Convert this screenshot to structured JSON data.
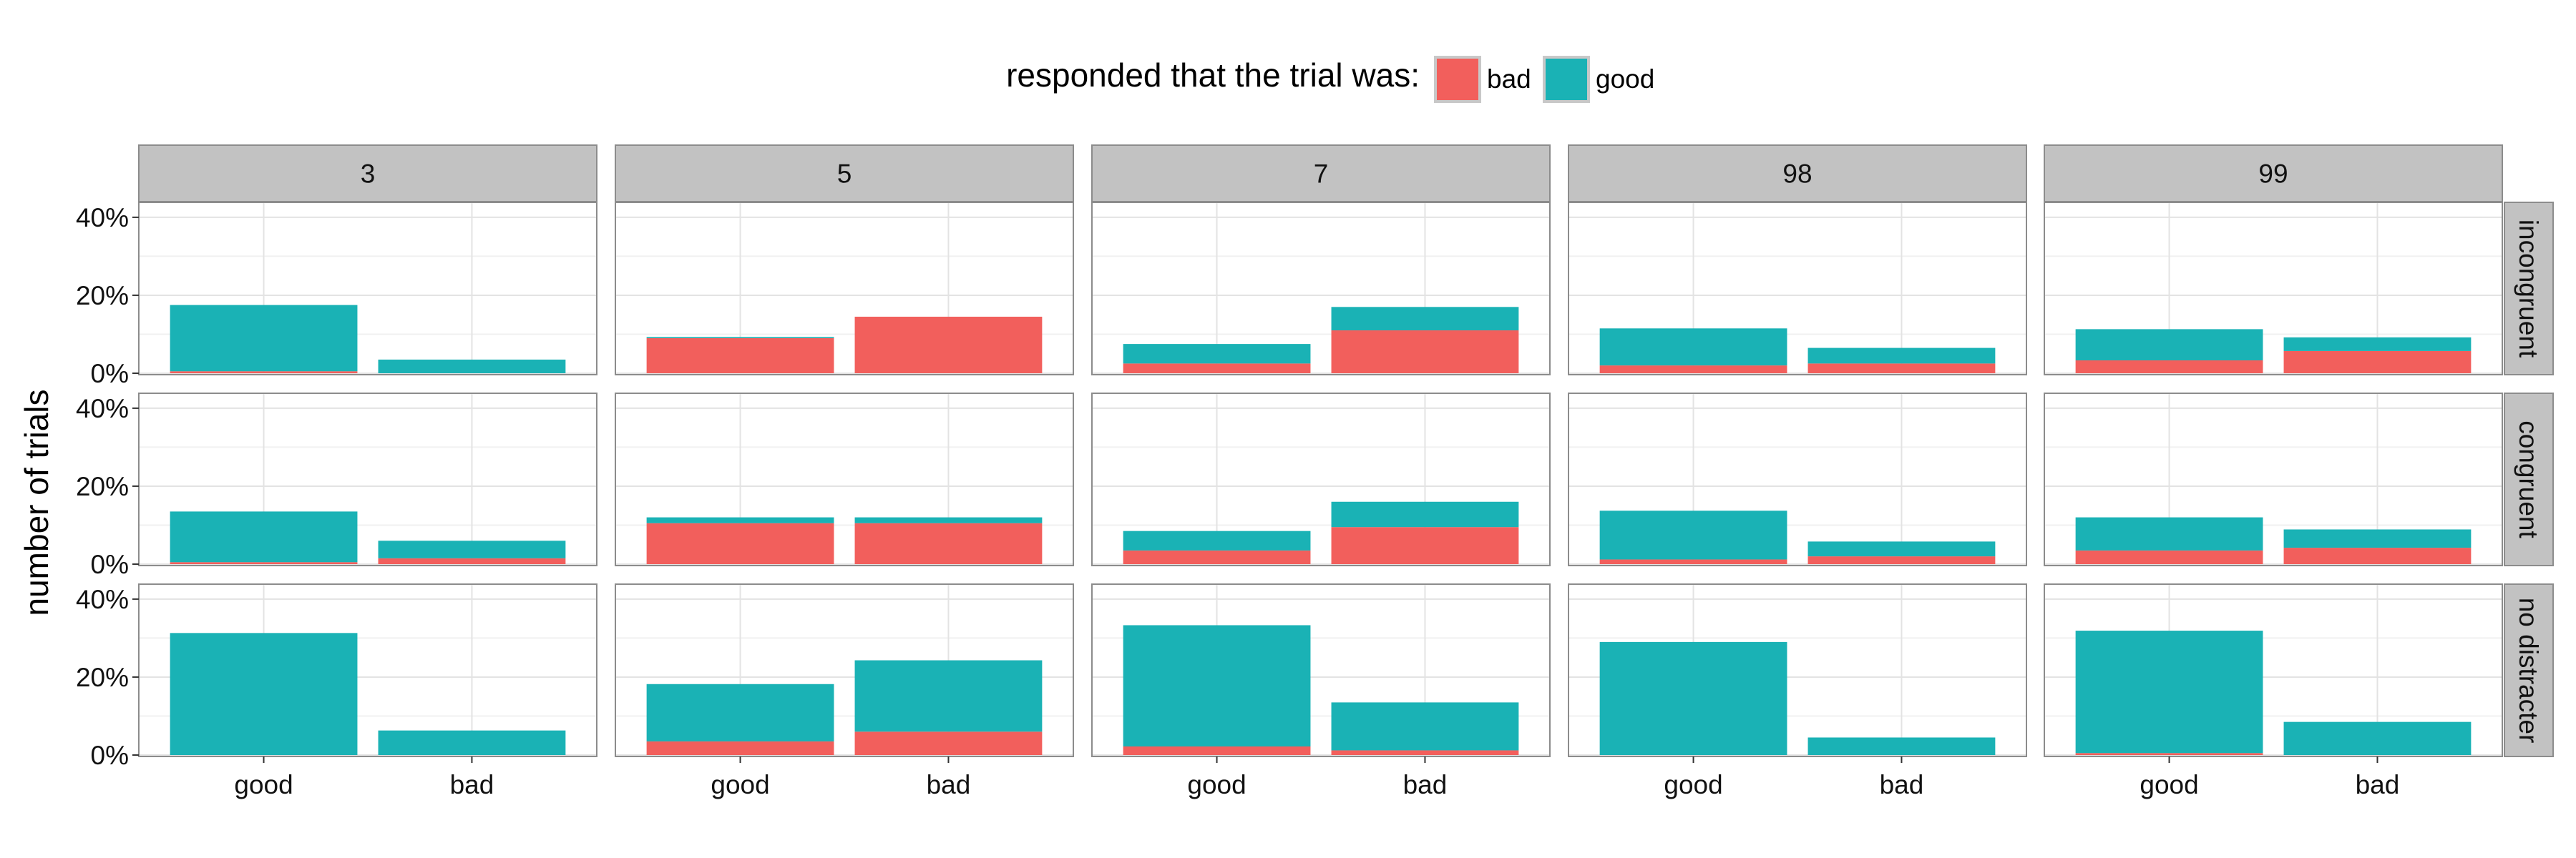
{
  "legend": {
    "title": "responded that the trial was:",
    "items": [
      {
        "label": "bad",
        "color": "#f25f5c"
      },
      {
        "label": "good",
        "color": "#1ab2b5"
      }
    ]
  },
  "chart_data": {
    "type": "bar",
    "stacked": true,
    "ylabel": "number of trials",
    "xlabel": "",
    "ylim": [
      0,
      0.42
    ],
    "y_ticks": [
      0,
      0.2,
      0.4
    ],
    "y_tick_labels": [
      "0%",
      "20%",
      "40%"
    ],
    "grid": true,
    "legend_position": "top",
    "categories": [
      "good",
      "bad"
    ],
    "column_facets": [
      "3",
      "5",
      "7",
      "98",
      "99"
    ],
    "row_facets": [
      "incongruent",
      "congruent",
      "no distracter"
    ],
    "series_colors": {
      "bad": "#f25f5c",
      "good": "#1ab2b5"
    },
    "panels": [
      {
        "row": "incongruent",
        "col": "3",
        "bad": [
          0.005,
          0.0
        ],
        "good": [
          0.17,
          0.035
        ]
      },
      {
        "row": "incongruent",
        "col": "5",
        "bad": [
          0.09,
          0.145
        ],
        "good": [
          0.003,
          0.0
        ]
      },
      {
        "row": "incongruent",
        "col": "7",
        "bad": [
          0.025,
          0.11
        ],
        "good": [
          0.05,
          0.06
        ]
      },
      {
        "row": "incongruent",
        "col": "98",
        "bad": [
          0.02,
          0.025
        ],
        "good": [
          0.095,
          0.04
        ]
      },
      {
        "row": "incongruent",
        "col": "99",
        "bad": [
          0.033,
          0.057
        ],
        "good": [
          0.08,
          0.035
        ]
      },
      {
        "row": "congruent",
        "col": "3",
        "bad": [
          0.005,
          0.015
        ],
        "good": [
          0.13,
          0.045
        ]
      },
      {
        "row": "congruent",
        "col": "5",
        "bad": [
          0.105,
          0.105
        ],
        "good": [
          0.015,
          0.015
        ]
      },
      {
        "row": "congruent",
        "col": "7",
        "bad": [
          0.035,
          0.095
        ],
        "good": [
          0.05,
          0.065
        ]
      },
      {
        "row": "congruent",
        "col": "98",
        "bad": [
          0.012,
          0.02
        ],
        "good": [
          0.125,
          0.038
        ]
      },
      {
        "row": "congruent",
        "col": "99",
        "bad": [
          0.035,
          0.042
        ],
        "good": [
          0.085,
          0.047
        ]
      },
      {
        "row": "no distracter",
        "col": "3",
        "bad": [
          0.0,
          0.0
        ],
        "good": [
          0.313,
          0.063
        ]
      },
      {
        "row": "no distracter",
        "col": "5",
        "bad": [
          0.035,
          0.06
        ],
        "good": [
          0.147,
          0.183
        ]
      },
      {
        "row": "no distracter",
        "col": "7",
        "bad": [
          0.022,
          0.012
        ],
        "good": [
          0.311,
          0.123
        ]
      },
      {
        "row": "no distracter",
        "col": "98",
        "bad": [
          0.0,
          0.0
        ],
        "good": [
          0.29,
          0.045
        ]
      },
      {
        "row": "no distracter",
        "col": "99",
        "bad": [
          0.005,
          0.0
        ],
        "good": [
          0.314,
          0.085
        ]
      }
    ]
  }
}
